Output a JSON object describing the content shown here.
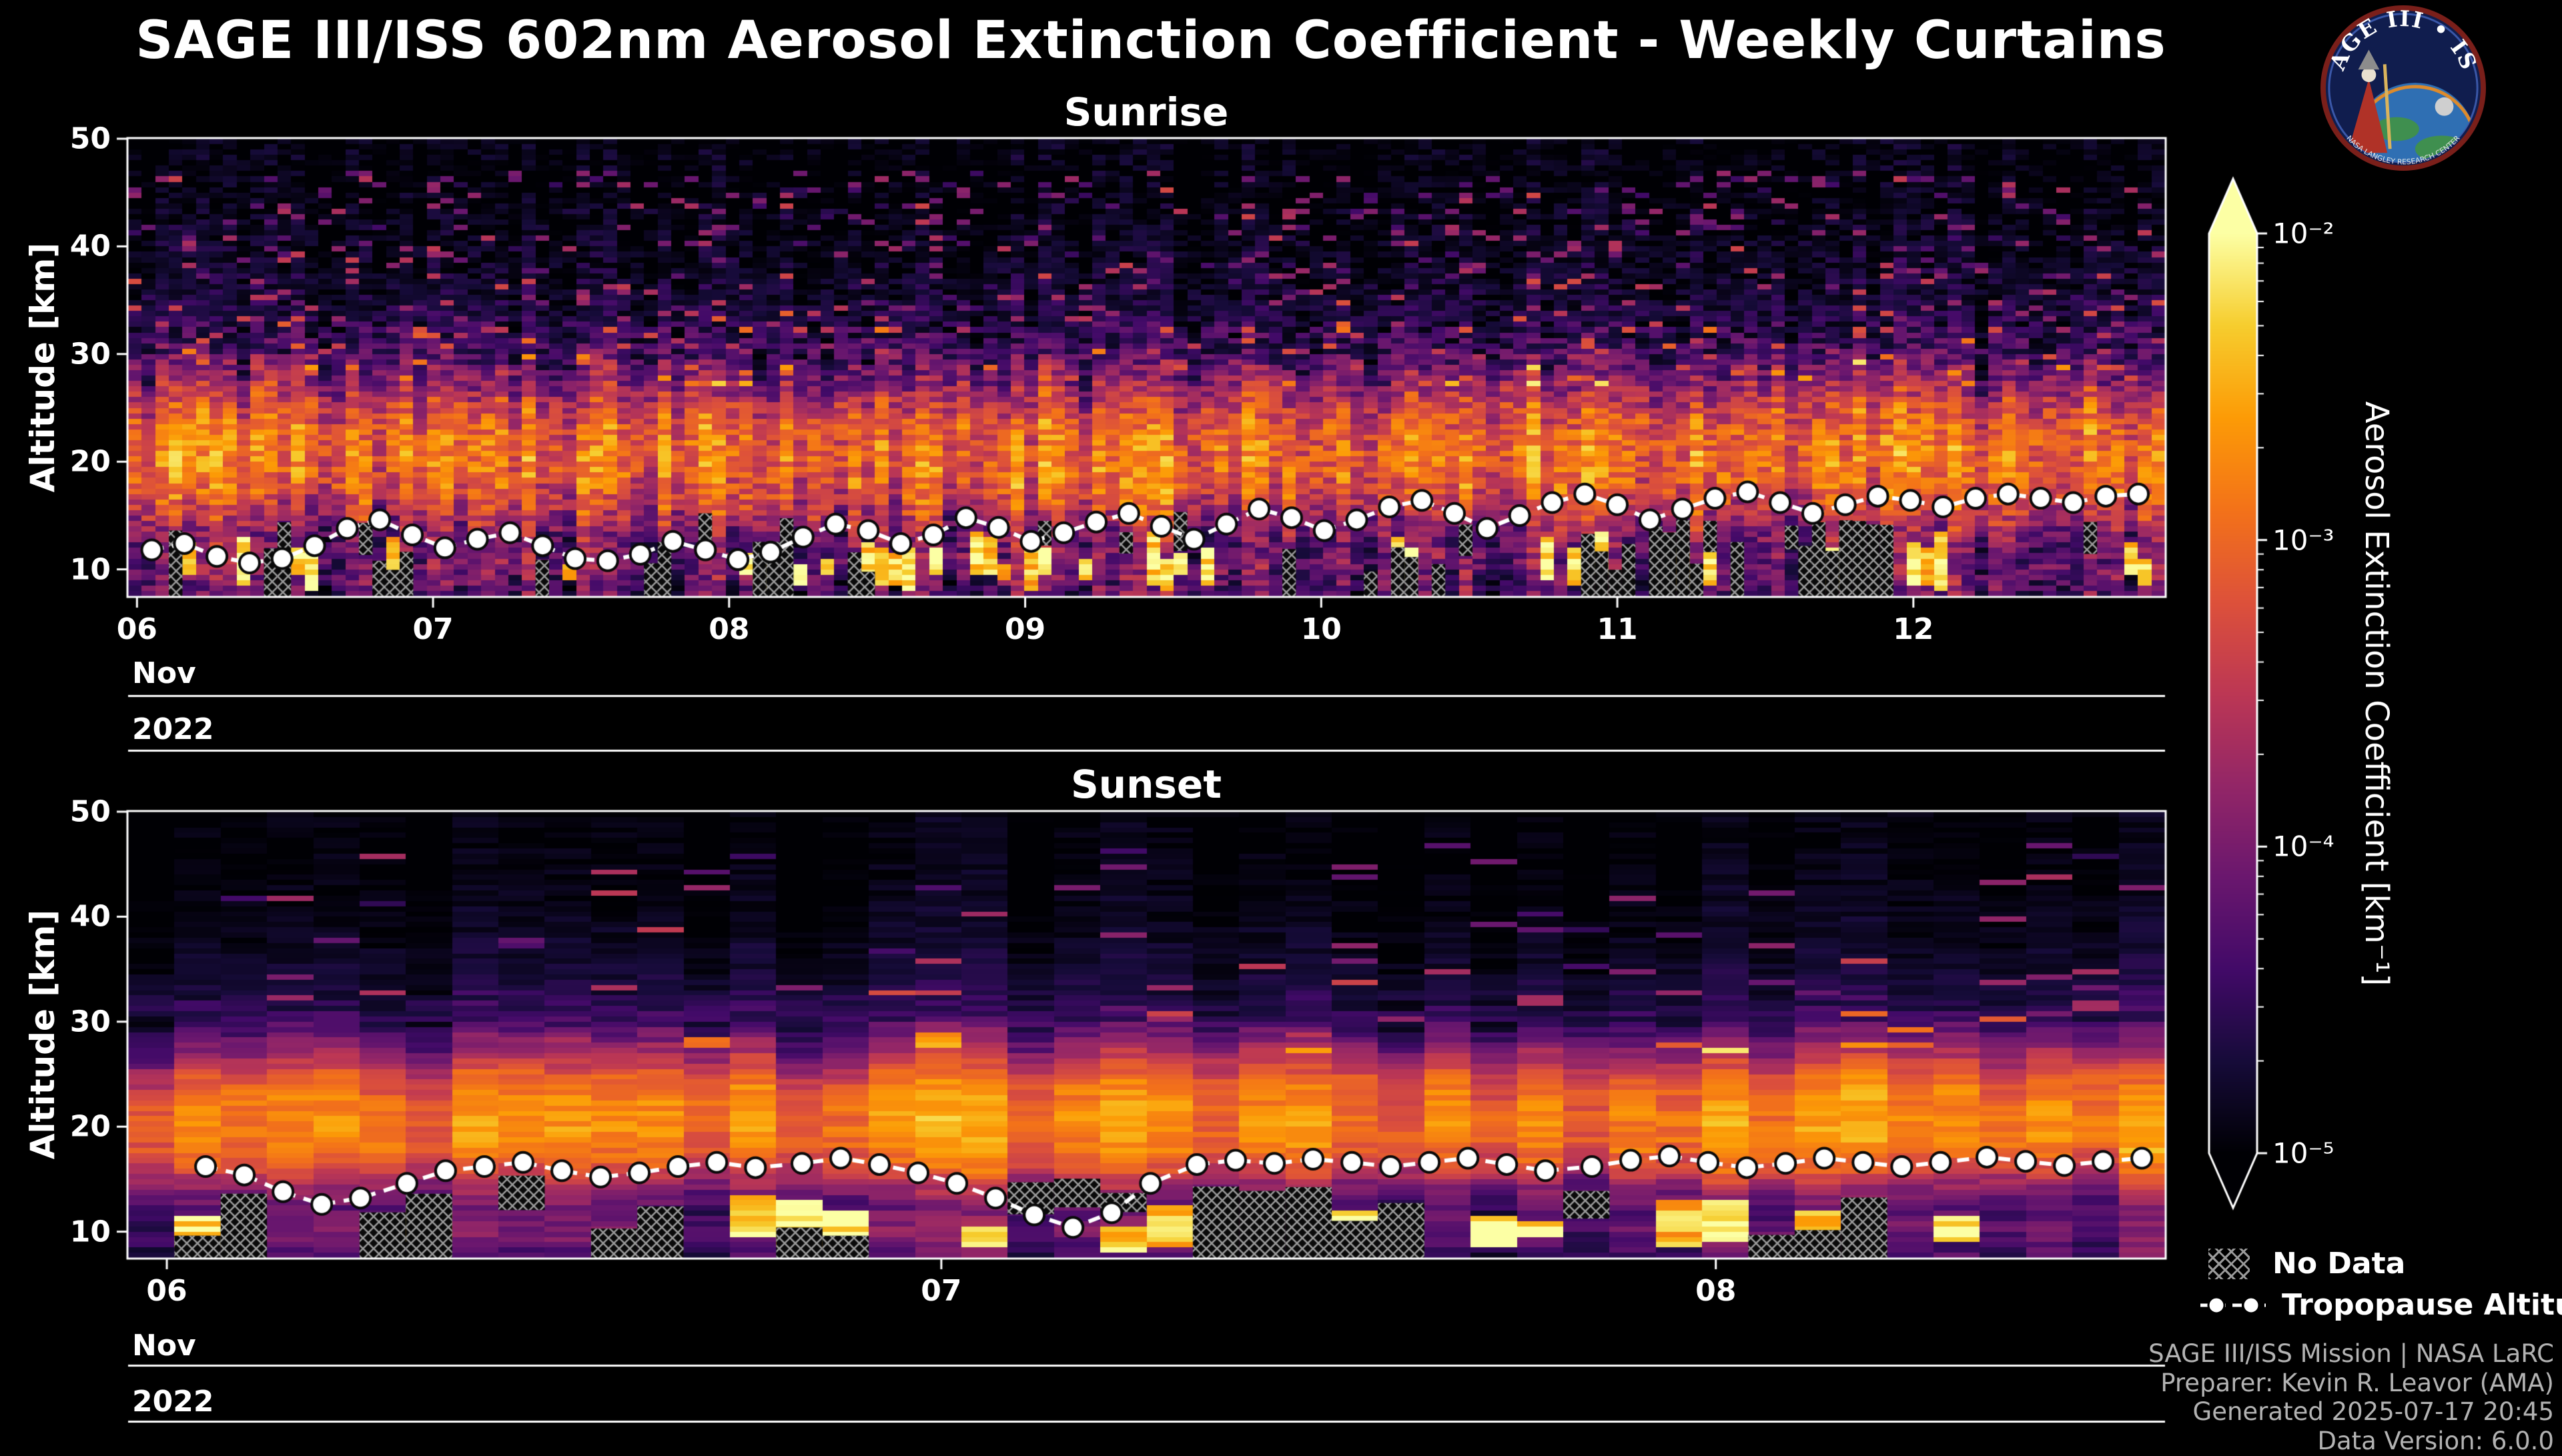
{
  "title": "SAGE III/ISS 602nm Aerosol Extinction Coefficient - Weekly Curtains",
  "logo": {
    "title_arc": "SAGE III • ISS",
    "ring_text": "NASA LANGLEY RESEARCH CENTER"
  },
  "colorbar": {
    "title": "Aerosol Extinction Coefficient [km⁻¹]",
    "colormap": "inferno",
    "scale": "log10",
    "range_log10": [
      -5,
      -2
    ],
    "ticks": {
      "labels": [
        "10⁻²",
        "10⁻³",
        "10⁻⁴",
        "10⁻⁵"
      ],
      "log10_values": [
        -2,
        -3,
        -4,
        -5
      ]
    }
  },
  "legend": {
    "no_data_label": "No Data",
    "tropopause_label": "Tropopause Altitude"
  },
  "credits": [
    "SAGE III/ISS Mission | NASA LaRC",
    "Preparer: Kevin R. Leavor (AMA)",
    "Generated 2025-07-17 20:45",
    "Data Version: 6.0.0"
  ],
  "chart_data": [
    {
      "type": "heatmap",
      "title": "Sunrise",
      "ylabel": "Altitude [km]",
      "x_axis": {
        "tick_labels": [
          "06",
          "07",
          "08",
          "09",
          "10",
          "11",
          "12"
        ],
        "tick_days": [
          6,
          7,
          8,
          9,
          10,
          11,
          12
        ],
        "month": "Nov",
        "year": "2022",
        "range_days": [
          5.97,
          12.85
        ]
      },
      "y_axis": {
        "tick_labels": [
          "10",
          "20",
          "30",
          "40",
          "50"
        ],
        "tick_values": [
          10,
          20,
          30,
          40,
          50
        ],
        "range_km": [
          7.5,
          50
        ]
      },
      "value_scale": {
        "type": "log10",
        "min": -5,
        "max": -2,
        "units": "km⁻¹"
      },
      "profile": {
        "altitudes_km": [
          50,
          45,
          40,
          35,
          30,
          28,
          26,
          24,
          22,
          20,
          18,
          16,
          14,
          12,
          10,
          8
        ],
        "log10_extinction": [
          -5.0,
          -5.0,
          -4.9,
          -4.75,
          -4.4,
          -4.05,
          -3.6,
          -3.2,
          -3.0,
          -2.95,
          -3.05,
          -3.35,
          -3.8,
          -4.2,
          -4.0,
          -4.3
        ]
      },
      "columns": 150,
      "texture": {
        "seed": 42,
        "noise": 0.45,
        "band_jitter_km": 2.6,
        "speckle_prob": 0.1,
        "cloud_prob": 0.22,
        "hatch_prob": 0.22
      },
      "tropopause": {
        "x_days": [
          6.05,
          6.16,
          6.27,
          6.38,
          6.49,
          6.6,
          6.71,
          6.82,
          6.93,
          7.04,
          7.15,
          7.26,
          7.37,
          7.48,
          7.59,
          7.7,
          7.81,
          7.92,
          8.03,
          8.14,
          8.25,
          8.36,
          8.47,
          8.58,
          8.69,
          8.8,
          8.91,
          9.02,
          9.13,
          9.24,
          9.35,
          9.46,
          9.57,
          9.68,
          9.79,
          9.9,
          10.01,
          10.12,
          10.23,
          10.34,
          10.45,
          10.56,
          10.67,
          10.78,
          10.89,
          11.0,
          11.11,
          11.22,
          11.33,
          11.44,
          11.55,
          11.66,
          11.77,
          11.88,
          11.99,
          12.1,
          12.21,
          12.32,
          12.43,
          12.54,
          12.65,
          12.76
        ],
        "alt_km": [
          11.8,
          12.4,
          11.2,
          10.6,
          11.0,
          12.2,
          13.8,
          14.6,
          13.2,
          12.0,
          12.8,
          13.4,
          12.2,
          11.0,
          10.8,
          11.4,
          12.6,
          11.8,
          10.9,
          11.6,
          13.0,
          14.2,
          13.6,
          12.4,
          13.2,
          14.8,
          13.9,
          12.6,
          13.4,
          14.4,
          15.2,
          14.0,
          12.8,
          14.2,
          15.6,
          14.8,
          13.6,
          14.6,
          15.8,
          16.4,
          15.2,
          13.8,
          15.0,
          16.2,
          17.0,
          16.0,
          14.6,
          15.6,
          16.6,
          17.2,
          16.2,
          15.2,
          16.0,
          16.8,
          16.4,
          15.8,
          16.6,
          17.0,
          16.6,
          16.2,
          16.8,
          17.0
        ]
      }
    },
    {
      "type": "heatmap",
      "title": "Sunset",
      "ylabel": "Altitude [km]",
      "x_axis": {
        "tick_labels": [
          "06",
          "07",
          "08"
        ],
        "tick_days": [
          6,
          7,
          8
        ],
        "month": "Nov",
        "year": "2022",
        "range_days": [
          5.95,
          8.58
        ]
      },
      "y_axis": {
        "tick_labels": [
          "10",
          "20",
          "30",
          "40",
          "50"
        ],
        "tick_values": [
          10,
          20,
          30,
          40,
          50
        ],
        "range_km": [
          7.5,
          50
        ]
      },
      "value_scale": {
        "type": "log10",
        "min": -5,
        "max": -2,
        "units": "km⁻¹"
      },
      "profile": {
        "altitudes_km": [
          50,
          45,
          40,
          35,
          30,
          28,
          26,
          24,
          22,
          20,
          18,
          16,
          14,
          12,
          10,
          8
        ],
        "log10_extinction": [
          -5.0,
          -5.0,
          -4.92,
          -4.8,
          -4.5,
          -4.1,
          -3.55,
          -3.05,
          -2.85,
          -2.8,
          -2.9,
          -3.25,
          -3.9,
          -4.3,
          -4.1,
          -4.4
        ]
      },
      "columns": 44,
      "texture": {
        "seed": 7,
        "noise": 0.22,
        "band_jitter_km": 1.2,
        "speckle_prob": 0.05,
        "cloud_prob": 0.25,
        "hatch_prob": 0.28
      },
      "tropopause": {
        "x_days": [
          6.05,
          6.1,
          6.15,
          6.2,
          6.25,
          6.31,
          6.36,
          6.41,
          6.46,
          6.51,
          6.56,
          6.61,
          6.66,
          6.71,
          6.76,
          6.82,
          6.87,
          6.92,
          6.97,
          7.02,
          7.07,
          7.12,
          7.17,
          7.22,
          7.27,
          7.33,
          7.38,
          7.43,
          7.48,
          7.53,
          7.58,
          7.63,
          7.68,
          7.73,
          7.78,
          7.84,
          7.89,
          7.94,
          7.99,
          8.04,
          8.09,
          8.14,
          8.19,
          8.24,
          8.29,
          8.35,
          8.4,
          8.45,
          8.5,
          8.55
        ],
        "alt_km": [
          16.2,
          15.4,
          13.8,
          12.6,
          13.2,
          14.6,
          15.8,
          16.2,
          16.6,
          15.8,
          15.2,
          15.6,
          16.2,
          16.6,
          16.1,
          16.5,
          17.0,
          16.4,
          15.6,
          14.6,
          13.2,
          11.6,
          10.4,
          11.8,
          14.6,
          16.4,
          16.8,
          16.5,
          16.9,
          16.6,
          16.2,
          16.6,
          17.0,
          16.4,
          15.8,
          16.2,
          16.8,
          17.2,
          16.6,
          16.1,
          16.5,
          17.0,
          16.6,
          16.2,
          16.6,
          17.1,
          16.7,
          16.3,
          16.7,
          17.0
        ]
      }
    }
  ]
}
